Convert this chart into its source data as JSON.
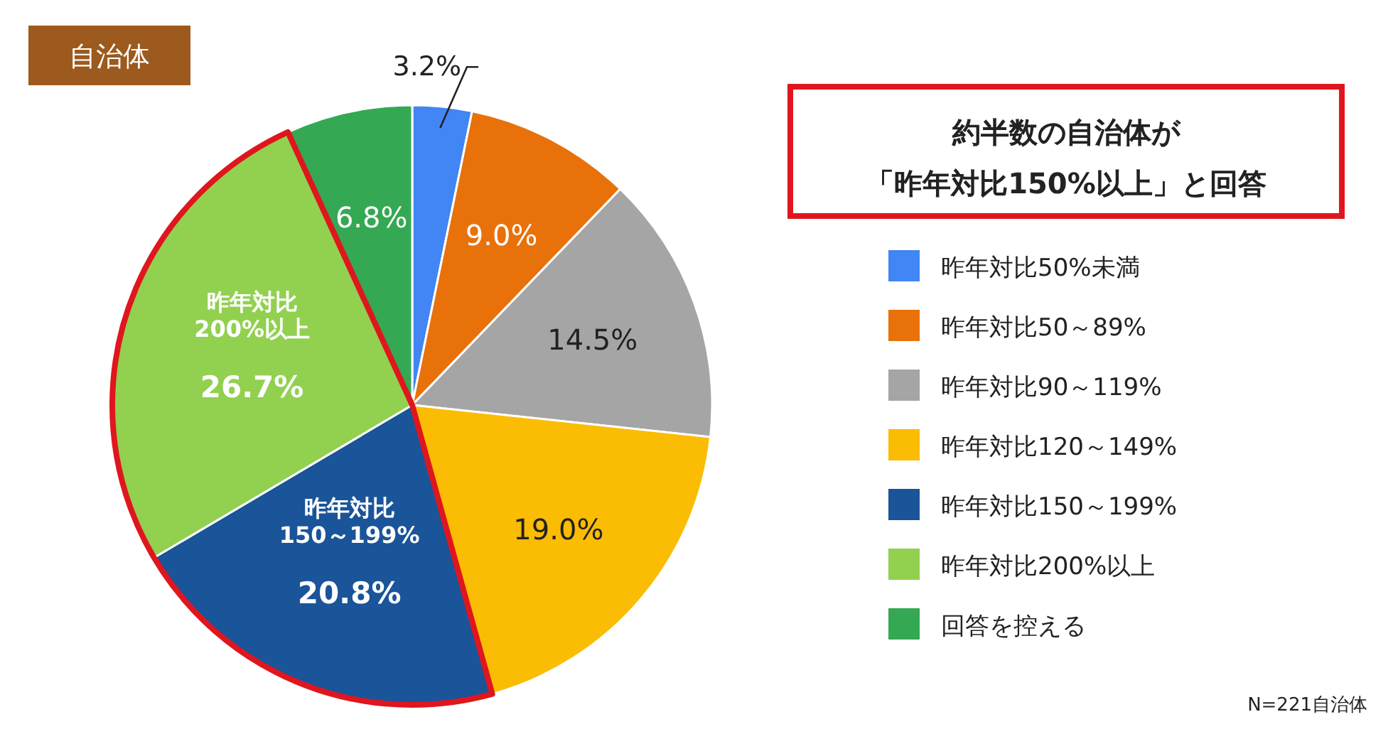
{
  "chart_data": {
    "type": "pie",
    "title": "自治体",
    "categories": [
      "昨年対比50%未満",
      "昨年対比50～89%",
      "昨年対比90～119%",
      "昨年対比120～149%",
      "昨年対比150～199%",
      "昨年対比200%以上",
      "回答を控える"
    ],
    "values": [
      3.2,
      9.0,
      14.5,
      19.0,
      20.8,
      26.7,
      6.8
    ],
    "colors": [
      "#4285f4",
      "#e8710a",
      "#a5a5a5",
      "#fbbc04",
      "#1a5499",
      "#92d050",
      "#34a853"
    ],
    "value_labels": [
      "3.2%",
      "9.0%",
      "14.5%",
      "19.0%",
      "20.8%",
      "26.7%",
      "6.8%"
    ],
    "legend": "right",
    "annotations": [
      "約半数の自治体が",
      "「昨年対比150%以上」と回答",
      {
        "text": "昨年対比\n150～199%",
        "x": "昨年対比150～199%"
      },
      {
        "text": "昨年対比\n200%以上",
        "x": "昨年対比200%以上"
      },
      "N=221自治体"
    ]
  }
}
